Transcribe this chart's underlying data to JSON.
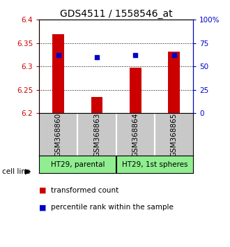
{
  "title": "GDS4511 / 1558546_at",
  "samples": [
    "GSM368860",
    "GSM368863",
    "GSM368864",
    "GSM368865"
  ],
  "red_values": [
    6.369,
    6.235,
    6.297,
    6.332
  ],
  "blue_values": [
    62,
    60,
    62,
    62
  ],
  "y_min": 6.2,
  "y_max": 6.4,
  "y_ticks": [
    6.2,
    6.25,
    6.3,
    6.35,
    6.4
  ],
  "y_right_ticks": [
    0,
    25,
    50,
    75,
    100
  ],
  "y_right_labels": [
    "0",
    "25",
    "50",
    "75",
    "100%"
  ],
  "cell_lines": [
    "HT29, parental",
    "HT29, 1st spheres"
  ],
  "cell_line_groups": [
    [
      0,
      1
    ],
    [
      2,
      3
    ]
  ],
  "bar_color": "#CC0000",
  "dot_color": "#0000CC",
  "label_box_color": "#C8C8C8",
  "cell_line_color": "#90EE90",
  "background_color": "#FFFFFF",
  "title_fontsize": 10,
  "tick_fontsize": 7.5,
  "label_fontsize": 7.5,
  "legend_fontsize": 7.5
}
